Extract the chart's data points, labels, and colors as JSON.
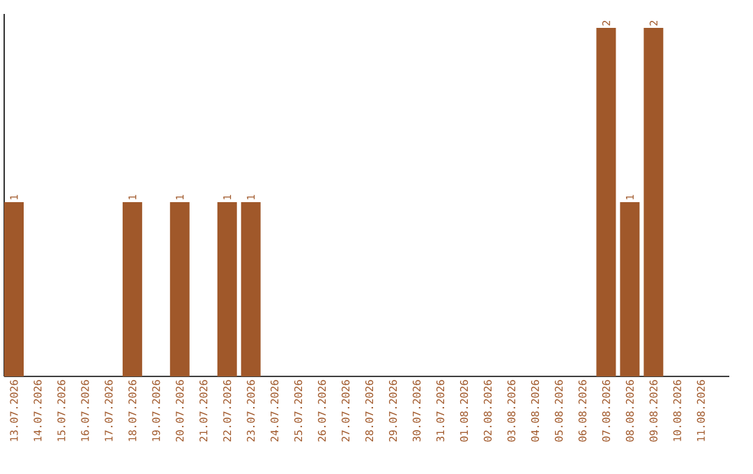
{
  "chart_data": {
    "type": "bar",
    "categories": [
      "13.07.2026",
      "14.07.2026",
      "15.07.2026",
      "16.07.2026",
      "17.07.2026",
      "18.07.2026",
      "19.07.2026",
      "20.07.2026",
      "21.07.2026",
      "22.07.2026",
      "23.07.2026",
      "24.07.2026",
      "25.07.2026",
      "26.07.2026",
      "27.07.2026",
      "28.07.2026",
      "29.07.2026",
      "30.07.2026",
      "31.07.2026",
      "01.08.2026",
      "02.08.2026",
      "03.08.2026",
      "04.08.2026",
      "05.08.2026",
      "06.08.2026",
      "07.08.2026",
      "08.08.2026",
      "09.08.2026",
      "10.08.2026",
      "11.08.2026"
    ],
    "values": [
      1,
      0,
      0,
      0,
      0,
      1,
      0,
      1,
      0,
      1,
      1,
      0,
      0,
      0,
      0,
      0,
      0,
      0,
      0,
      0,
      0,
      0,
      0,
      0,
      0,
      2,
      1,
      2,
      0,
      0
    ],
    "value_labels": [
      "1",
      null,
      null,
      null,
      null,
      "1",
      null,
      "1",
      null,
      "1",
      "1",
      null,
      null,
      null,
      null,
      null,
      null,
      null,
      null,
      null,
      null,
      null,
      null,
      null,
      null,
      "2",
      "1",
      "2",
      null,
      null
    ],
    "color": "#a0582a",
    "ylim": [
      0,
      2.08
    ],
    "tick_labels": "x",
    "grid": false
  }
}
